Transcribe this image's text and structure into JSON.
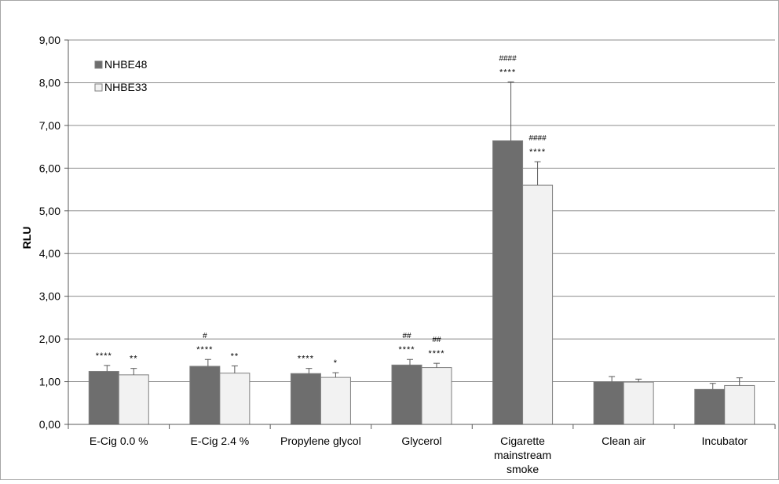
{
  "chart_data": {
    "type": "bar",
    "ylabel": "RLU",
    "ylim": [
      0,
      9
    ],
    "ytick_values": [
      0,
      1,
      2,
      3,
      4,
      5,
      6,
      7,
      8,
      9
    ],
    "ytick_labels": [
      "0,00",
      "1,00",
      "2,00",
      "3,00",
      "4,00",
      "5,00",
      "6,00",
      "7,00",
      "8,00",
      "9,00"
    ],
    "grid": true,
    "legend_position": "top-left",
    "categories": [
      [
        "E-Cig 0.0 %"
      ],
      [
        "E-Cig 2.4 %"
      ],
      [
        "Propylene glycol"
      ],
      [
        "Glycerol"
      ],
      [
        "Cigarette",
        "mainstream",
        "smoke"
      ],
      [
        "Clean air"
      ],
      [
        "Incubator"
      ]
    ],
    "series": [
      {
        "name": "NHBE48",
        "color": "#6e6e6e",
        "values": [
          1.24,
          1.36,
          1.19,
          1.39,
          6.64,
          1.0,
          0.82
        ],
        "errors": [
          0.14,
          0.16,
          0.12,
          0.13,
          1.38,
          0.12,
          0.14
        ],
        "stars": [
          "****",
          "****",
          "****",
          "****",
          "****",
          "",
          ""
        ],
        "hashes": [
          "",
          "#",
          "",
          "##",
          "####",
          "",
          ""
        ]
      },
      {
        "name": "NHBE33",
        "color": "#f2f2f2",
        "values": [
          1.16,
          1.2,
          1.1,
          1.33,
          5.6,
          0.99,
          0.91
        ],
        "errors": [
          0.15,
          0.17,
          0.11,
          0.1,
          0.55,
          0.07,
          0.18
        ],
        "stars": [
          "**",
          "**",
          "*",
          "****",
          "****",
          "",
          ""
        ],
        "hashes": [
          "",
          "",
          "",
          "##",
          "####",
          "",
          ""
        ]
      }
    ]
  }
}
